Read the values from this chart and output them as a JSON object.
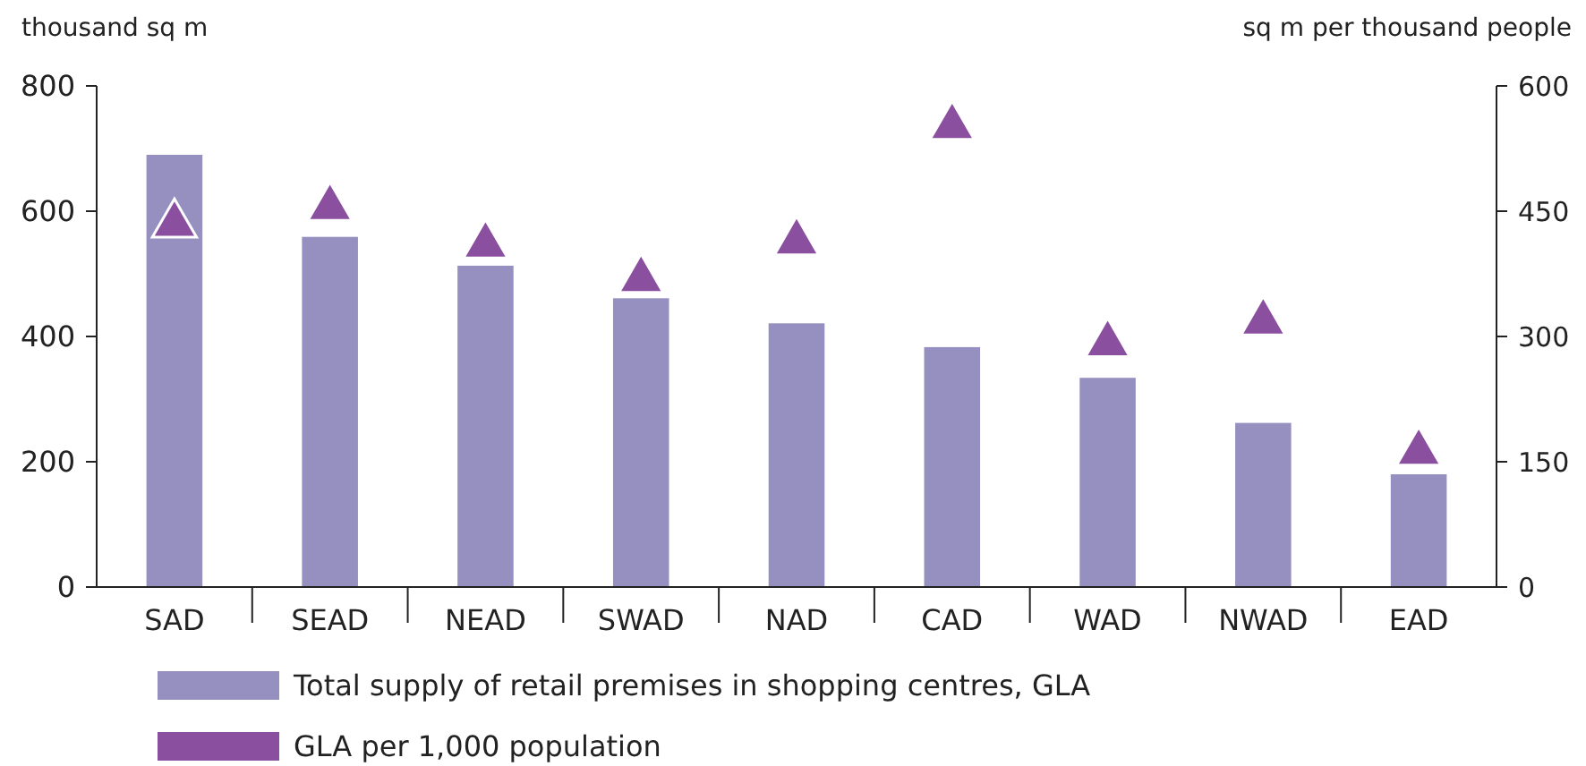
{
  "chart_data": {
    "type": "bar",
    "ylabel": "thousand sq m",
    "y2label": "sq m per thousand people",
    "categories": [
      "SAD",
      "SEAD",
      "NEAD",
      "SWAD",
      "NAD",
      "CAD",
      "WAD",
      "NWAD",
      "EAD"
    ],
    "series": [
      {
        "name": "Total supply of retail premises in shopping centres, GLA",
        "color": "#9590bf",
        "type": "bar",
        "values": [
          690,
          559,
          513,
          461,
          421,
          383,
          334,
          262,
          180
        ]
      },
      {
        "name": "GLA per 1,000 population",
        "color": "#8b4fa0",
        "type": "scatter",
        "axis": "y2",
        "marker": "triangle",
        "values": [
          437,
          457,
          412,
          371,
          416,
          554,
          294,
          320,
          164
        ]
      }
    ],
    "ylim": [
      0,
      800
    ],
    "yticks": [
      0,
      200,
      400,
      600,
      800
    ],
    "y2lim": [
      0,
      600
    ],
    "y2ticks": [
      0,
      150,
      300,
      450,
      600
    ],
    "grid": false,
    "legend": "bottom"
  }
}
